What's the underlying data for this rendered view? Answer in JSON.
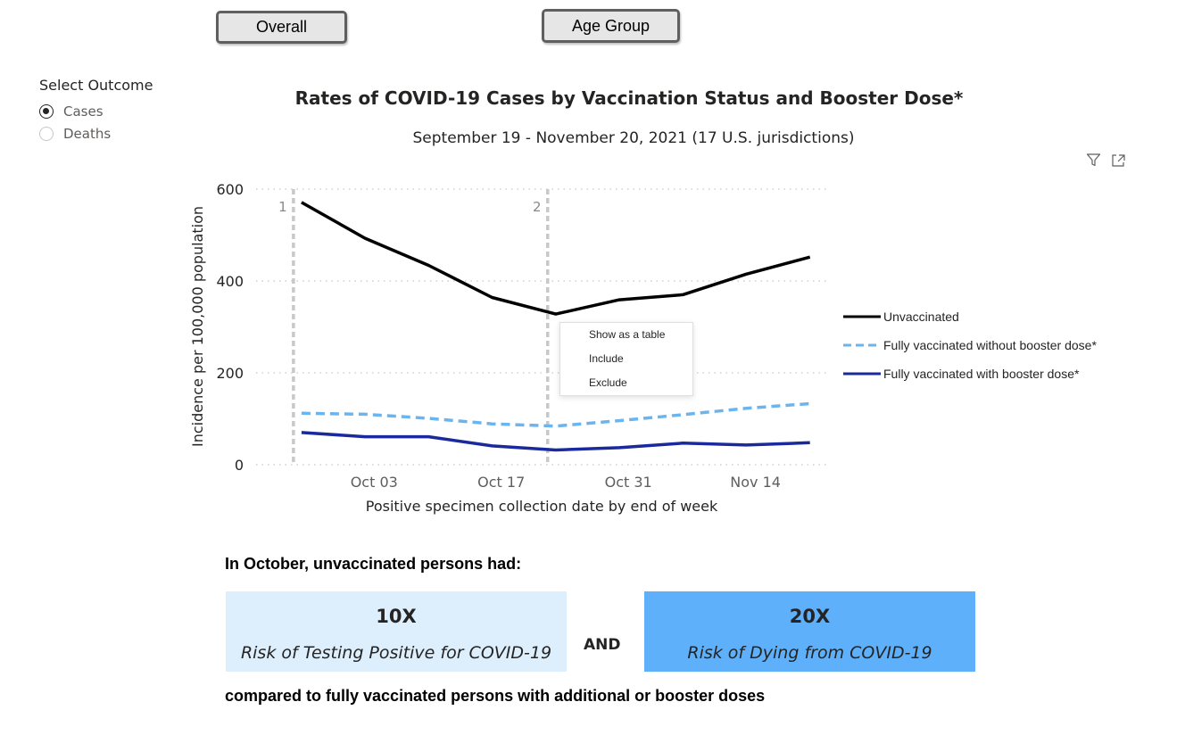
{
  "nav": {
    "overall_label": "Overall",
    "age_group_label": "Age Group"
  },
  "outcome": {
    "title": "Select Outcome",
    "options": [
      {
        "label": "Cases",
        "selected": true
      },
      {
        "label": "Deaths",
        "selected": false
      }
    ]
  },
  "icons": {
    "filter": "filter-icon",
    "focus": "focus-mode-icon"
  },
  "context_menu": {
    "items": [
      "Show as a table",
      "Include",
      "Exclude"
    ]
  },
  "chart_data": {
    "type": "line",
    "title": "Rates of COVID-19 Cases by Vaccination Status and Booster Dose*",
    "subtitle": "September 19 - November 20, 2021 (17 U.S. jurisdictions)",
    "xlabel": "Positive specimen collection date by end of week",
    "ylabel": "Incidence per 100,000 population",
    "ylim": [
      0,
      600
    ],
    "yticks": [
      0,
      200,
      400,
      600
    ],
    "x": [
      "2021-09-25",
      "2021-10-02",
      "2021-10-09",
      "2021-10-16",
      "2021-10-23",
      "2021-10-30",
      "2021-11-06",
      "2021-11-13",
      "2021-11-20"
    ],
    "xtick_labels": [
      "Oct 03",
      "Oct 17",
      "Oct 31",
      "Nov 14"
    ],
    "xtick_dates": [
      "2021-10-03",
      "2021-10-17",
      "2021-10-31",
      "2021-11-14"
    ],
    "reference_lines": [
      {
        "label": "1",
        "date": "2021-09-25"
      },
      {
        "label": "2",
        "date": "2021-10-23"
      }
    ],
    "series": [
      {
        "name": "Unvaccinated",
        "color": "#000000",
        "style": "solid",
        "values": [
          571,
          493,
          434,
          364,
          328,
          359,
          370,
          415,
          452
        ]
      },
      {
        "name": "Fully vaccinated without booster dose*",
        "color": "#6cb4ee",
        "style": "dashed",
        "values": [
          112,
          110,
          101,
          89,
          84,
          96,
          109,
          123,
          133
        ]
      },
      {
        "name": "Fully vaccinated with booster dose*",
        "color": "#1a2a9c",
        "style": "solid",
        "values": [
          70,
          61,
          61,
          41,
          32,
          37,
          47,
          43,
          48
        ]
      }
    ],
    "legend_position": "right",
    "grid": true
  },
  "summary": {
    "heading": "In October, unvaccinated persons had:",
    "cases": {
      "value": "10X",
      "text": "Risk of Testing Positive for COVID-19",
      "color": "#ddeefd"
    },
    "and_label": "AND",
    "deaths": {
      "value": "20X",
      "text": "Risk of Dying from COVID-19",
      "color": "#5fb0fa"
    },
    "footer": "compared to fully vaccinated persons with additional or booster doses"
  }
}
